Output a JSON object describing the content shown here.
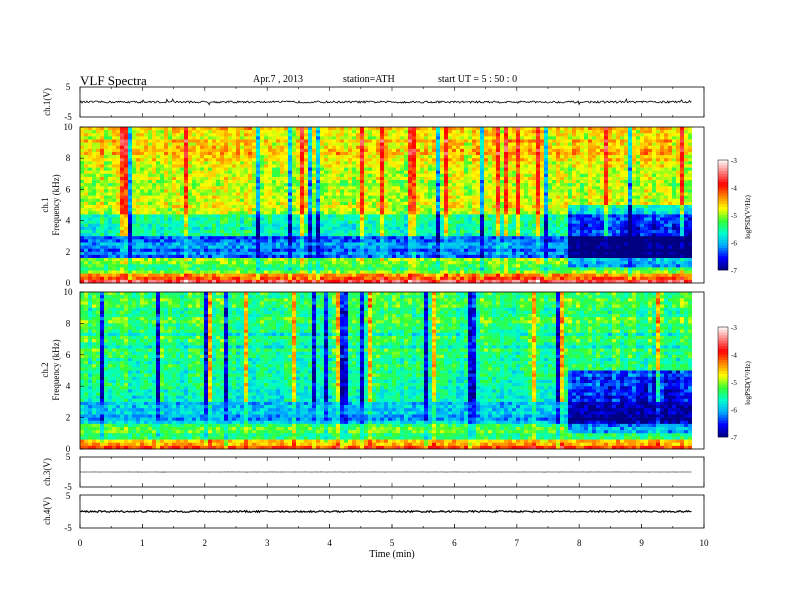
{
  "header": {
    "title": "VLF  Spectra",
    "date": "Apr.7  , 2013",
    "station": "station=ATH",
    "start": "start  UT  =   5  : 50 : 0"
  },
  "chart_data": [
    {
      "type": "line",
      "name": "ch1-waveform",
      "ylabel": "ch.1(V)",
      "xlim": [
        0,
        10
      ],
      "ylim": [
        -5,
        5
      ],
      "yticks": [
        "5",
        "-5"
      ],
      "level": 0,
      "noise_amplitude": 0.35,
      "data_end_min": 9.8
    },
    {
      "type": "heatmap",
      "name": "ch1-spectrogram",
      "channel_label": "ch.1",
      "ylabel": "Frequency  (kHz)",
      "xlim": [
        0,
        10
      ],
      "ylim": [
        0,
        10
      ],
      "yticks": [
        "0",
        "2",
        "4",
        "6",
        "8",
        "10"
      ],
      "data_end_min": 9.8,
      "colorbar": {
        "label": "logPSD(V²/Hz)",
        "range": [
          -7,
          -3
        ],
        "ticks": [
          "-3",
          "-4",
          "-5",
          "-6",
          "-7"
        ],
        "colors": [
          "#000080",
          "#0000ff",
          "#00aaff",
          "#00ffcc",
          "#33ff33",
          "#ffff00",
          "#ff8800",
          "#ff0000",
          "#ff8080",
          "#ffffff"
        ]
      },
      "bands": [
        {
          "freq_khz": [
            0,
            0.3
          ],
          "log_psd": -3.8
        },
        {
          "freq_khz": [
            0.3,
            0.6
          ],
          "log_psd": -4.3
        },
        {
          "freq_khz": [
            0.6,
            1.6
          ],
          "log_psd": -5.2
        },
        {
          "freq_khz": [
            1.6,
            3.0
          ],
          "log_psd": -6.2
        },
        {
          "freq_khz": [
            3.0,
            4.5
          ],
          "log_psd": -5.7
        },
        {
          "freq_khz": [
            4.5,
            7.5
          ],
          "log_psd": -5.0
        },
        {
          "freq_khz": [
            7.5,
            10
          ],
          "log_psd": -4.7
        }
      ],
      "quiet_period_min": [
        7.8,
        9.8
      ]
    },
    {
      "type": "heatmap",
      "name": "ch2-spectrogram",
      "channel_label": "ch.2",
      "ylabel": "Frequency  (kHz)",
      "xlim": [
        0,
        10
      ],
      "ylim": [
        0,
        10
      ],
      "yticks": [
        "0",
        "2",
        "4",
        "6",
        "8",
        "10"
      ],
      "data_end_min": 9.8,
      "colorbar": {
        "label": "logPSD(V²/Hz)",
        "range": [
          -7,
          -3
        ],
        "ticks": [
          "-3",
          "-4",
          "-5",
          "-6",
          "-7"
        ],
        "colors": [
          "#000080",
          "#0000ff",
          "#00aaff",
          "#00ffcc",
          "#33ff33",
          "#ffff00",
          "#ff8800",
          "#ff0000",
          "#ff8080",
          "#ffffff"
        ]
      },
      "bands": [
        {
          "freq_khz": [
            0,
            0.3
          ],
          "log_psd": -4.0
        },
        {
          "freq_khz": [
            0.3,
            0.6
          ],
          "log_psd": -4.5
        },
        {
          "freq_khz": [
            0.6,
            1.6
          ],
          "log_psd": -5.3
        },
        {
          "freq_khz": [
            1.6,
            3.0
          ],
          "log_psd": -6.0
        },
        {
          "freq_khz": [
            3.0,
            4.5
          ],
          "log_psd": -5.6
        },
        {
          "freq_khz": [
            4.5,
            7.5
          ],
          "log_psd": -5.5
        },
        {
          "freq_khz": [
            7.5,
            10
          ],
          "log_psd": -5.3
        }
      ],
      "quiet_period_min": [
        7.8,
        9.8
      ]
    },
    {
      "type": "line",
      "name": "ch3-waveform",
      "ylabel": "ch.3(V)",
      "xlim": [
        0,
        10
      ],
      "ylim": [
        -5,
        5
      ],
      "yticks": [
        "5",
        "-5"
      ],
      "level": 0,
      "noise_amplitude": 0.02,
      "data_end_min": 9.8
    },
    {
      "type": "line",
      "name": "ch4-waveform",
      "ylabel": "ch.4(V)",
      "xlim": [
        0,
        10
      ],
      "ylim": [
        -5,
        5
      ],
      "yticks": [
        "5",
        "-5"
      ],
      "level": 0,
      "noise_amplitude": 0.25,
      "data_end_min": 9.8
    }
  ],
  "xaxis": {
    "label": "Time  (min)",
    "ticks": [
      "0",
      "1",
      "2",
      "3",
      "4",
      "5",
      "6",
      "7",
      "8",
      "9",
      "10"
    ]
  }
}
